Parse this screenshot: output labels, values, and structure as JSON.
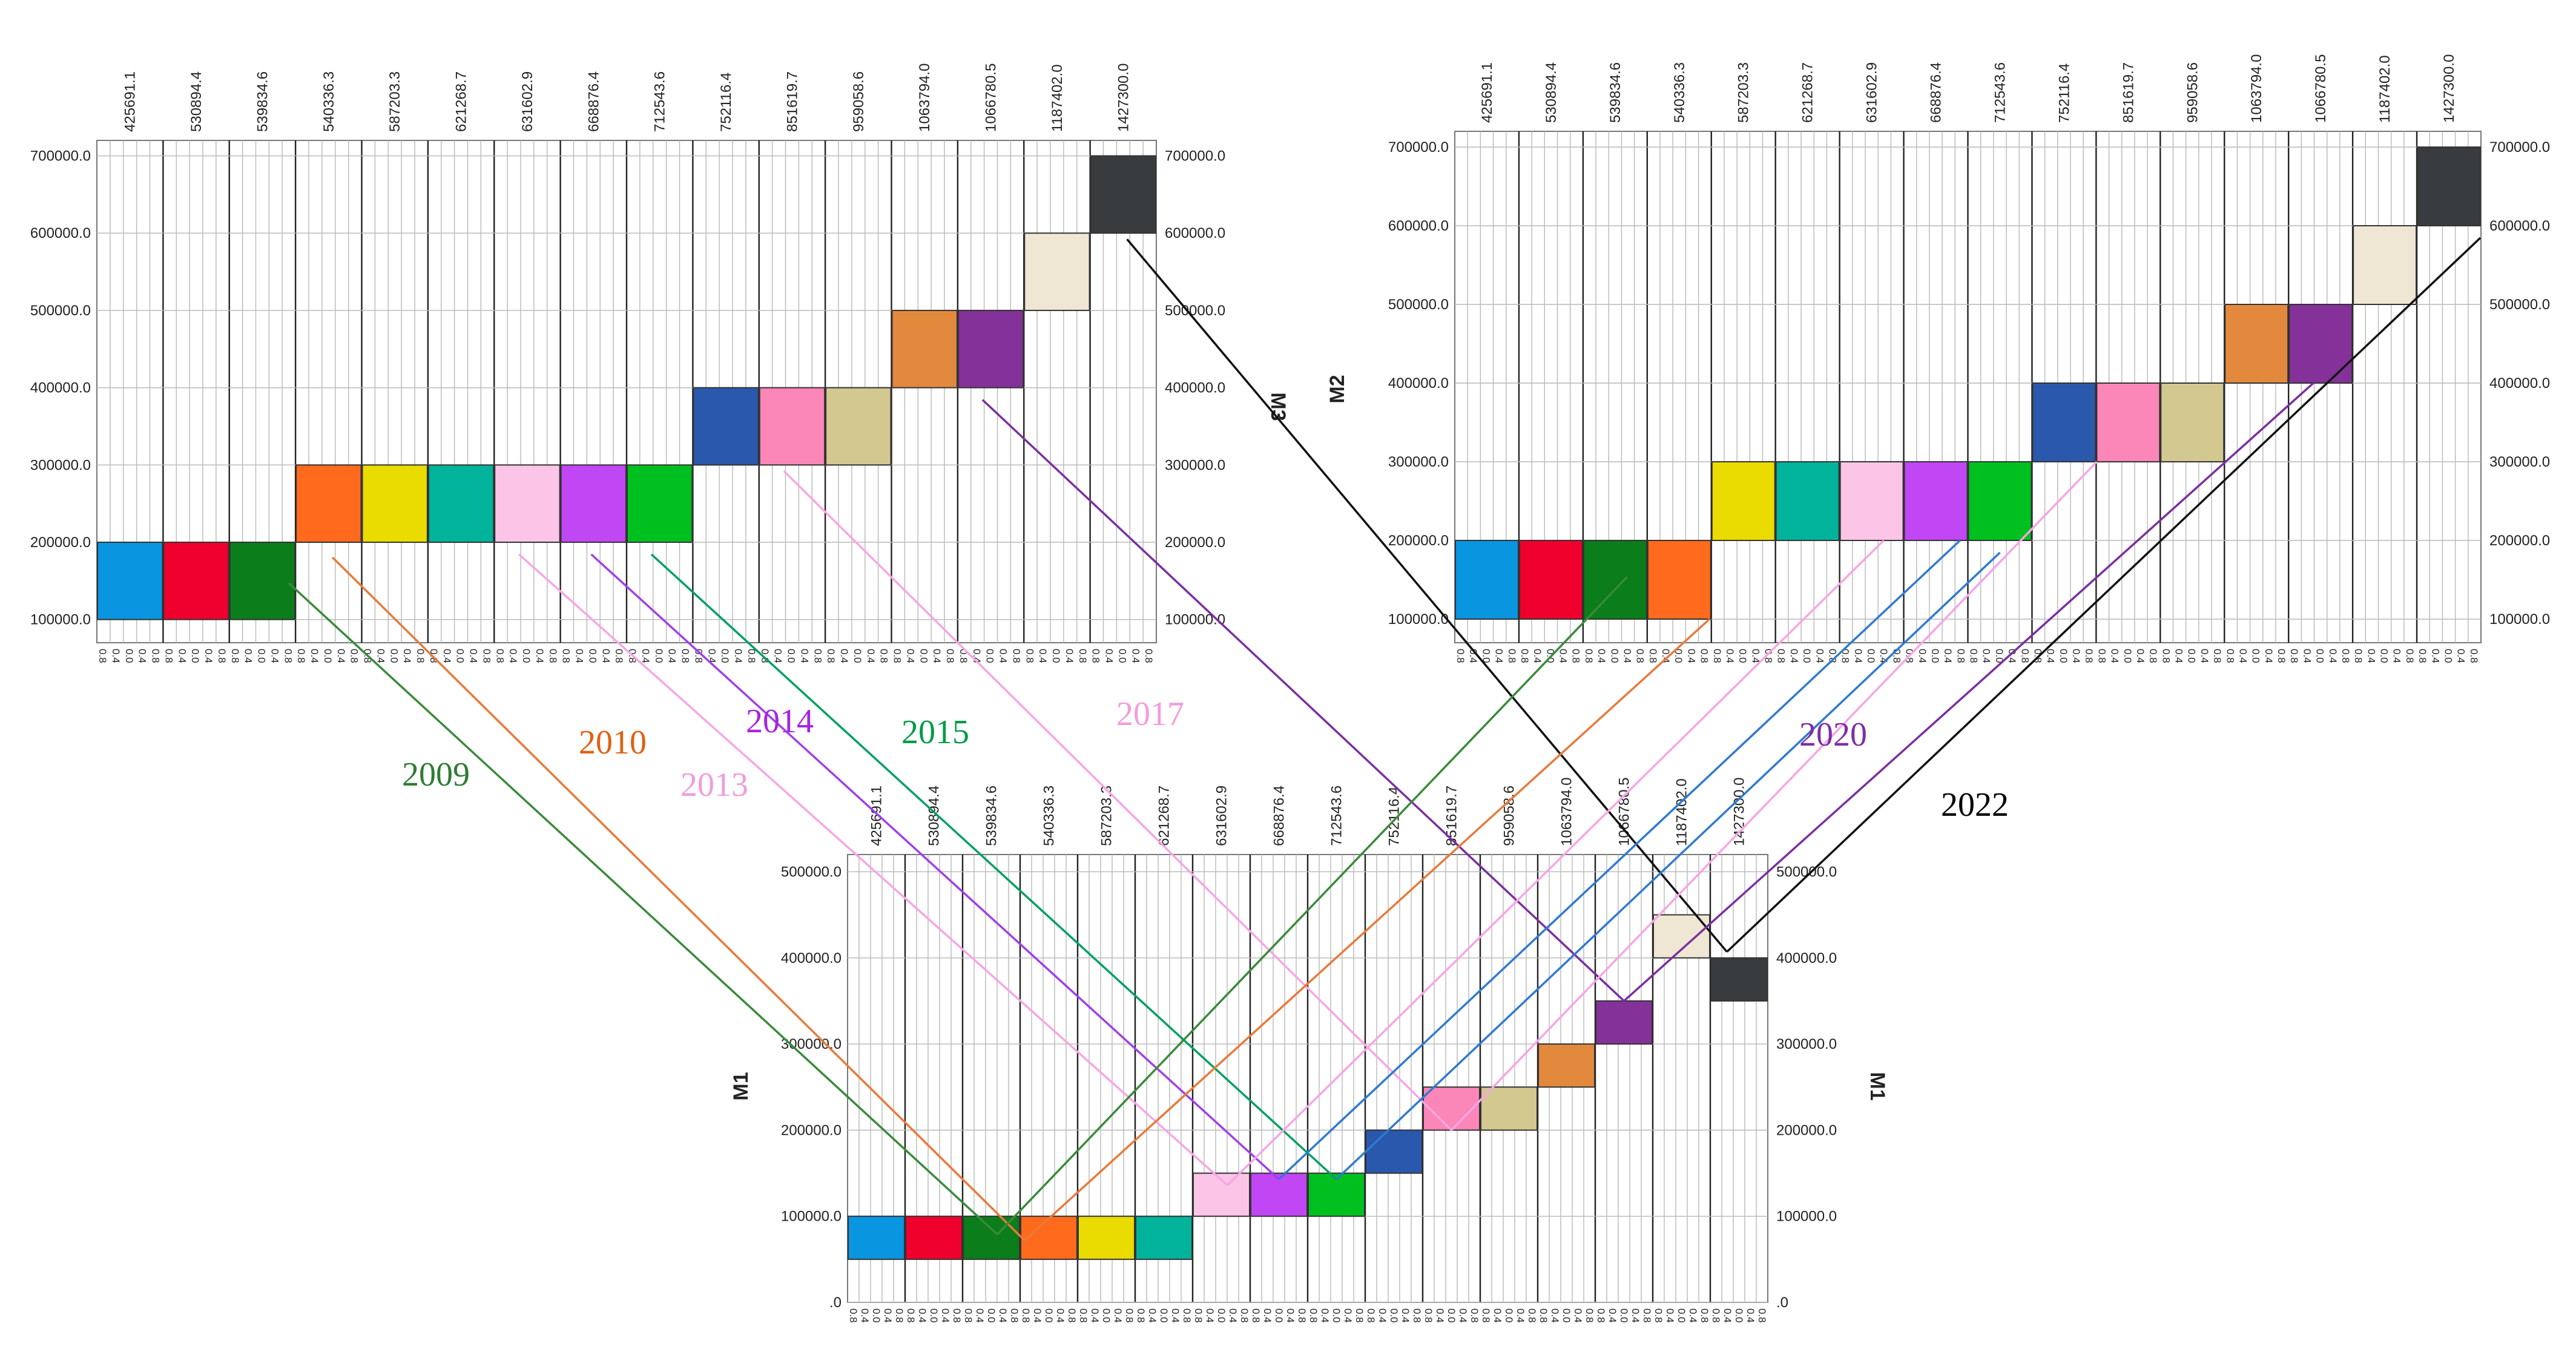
{
  "chart_data": {
    "type": "heatmap",
    "description_of_encoding": "three panels (M3, M2, M1); columns = categories; each colored cell spans one value bin",
    "categories": [
      "425691.1",
      "530894.4",
      "539834.6",
      "540336.3",
      "587203.3",
      "621268.7",
      "631602.9",
      "668876.4",
      "712543.6",
      "752116.4",
      "851619.7",
      "959058.6",
      "1063794.0",
      "1066780.5",
      "1187402.0",
      "1427300.0"
    ],
    "colors": [
      "#0a95e0",
      "#f0002c",
      "#0b7d1a",
      "#ff6a1c",
      "#eadb00",
      "#00b39a",
      "#fcc5e8",
      "#c146f4",
      "#00c020",
      "#2a58ad",
      "#fb86b8",
      "#d3c890",
      "#e2893e",
      "#843199",
      "#efe6d4",
      "#383c3f"
    ],
    "bottom_tick_labels": [
      "0.8",
      "0.4",
      "0.0",
      "0.4",
      "0.8"
    ],
    "panels": [
      {
        "name": "M3",
        "y_ticks": [
          "100000.0",
          "200000.0",
          "300000.0",
          "400000.0",
          "500000.0",
          "600000.0",
          "700000.0"
        ],
        "y_range": [
          70000,
          720000
        ],
        "cells": [
          [
            100000,
            200000
          ],
          [
            100000,
            200000
          ],
          [
            100000,
            200000
          ],
          [
            200000,
            300000
          ],
          [
            200000,
            300000
          ],
          [
            200000,
            300000
          ],
          [
            200000,
            300000
          ],
          [
            200000,
            300000
          ],
          [
            200000,
            300000
          ],
          [
            300000,
            400000
          ],
          [
            300000,
            400000
          ],
          [
            300000,
            400000
          ],
          [
            400000,
            500000
          ],
          [
            400000,
            500000
          ],
          [
            500000,
            600000
          ],
          [
            600000,
            700000
          ]
        ]
      },
      {
        "name": "M2",
        "y_ticks": [
          "100000.0",
          "200000.0",
          "300000.0",
          "400000.0",
          "500000.0",
          "600000.0",
          "700000.0"
        ],
        "y_range": [
          70000,
          720000
        ],
        "cells": [
          [
            100000,
            200000
          ],
          [
            100000,
            200000
          ],
          [
            100000,
            200000
          ],
          [
            100000,
            200000
          ],
          [
            200000,
            300000
          ],
          [
            200000,
            300000
          ],
          [
            200000,
            300000
          ],
          [
            200000,
            300000
          ],
          [
            200000,
            300000
          ],
          [
            300000,
            400000
          ],
          [
            300000,
            400000
          ],
          [
            300000,
            400000
          ],
          [
            400000,
            500000
          ],
          [
            400000,
            500000
          ],
          [
            500000,
            600000
          ],
          [
            600000,
            700000
          ]
        ]
      },
      {
        "name": "M1",
        "y_ticks": [
          ".0",
          "100000.0",
          "200000.0",
          "300000.0",
          "400000.0",
          "500000.0"
        ],
        "y_range": [
          0,
          520000
        ],
        "cells": [
          [
            50000,
            100000
          ],
          [
            50000,
            100000
          ],
          [
            50000,
            100000
          ],
          [
            50000,
            100000
          ],
          [
            50000,
            100000
          ],
          [
            50000,
            100000
          ],
          [
            100000,
            150000
          ],
          [
            100000,
            150000
          ],
          [
            100000,
            150000
          ],
          [
            150000,
            200000
          ],
          [
            200000,
            250000
          ],
          [
            200000,
            250000
          ],
          [
            250000,
            300000
          ],
          [
            300000,
            350000
          ],
          [
            400000,
            450000
          ],
          [
            350000,
            400000
          ]
        ]
      }
    ],
    "year_labels": [
      {
        "text": "2009",
        "color": "#2e7d32"
      },
      {
        "text": "2010",
        "color": "#e06010"
      },
      {
        "text": "2013",
        "color": "#f39bdc"
      },
      {
        "text": "2014",
        "color": "#a524e6"
      },
      {
        "text": "2015",
        "color": "#009a48"
      },
      {
        "text": "2017",
        "color": "#f39bdc"
      },
      {
        "text": "2020",
        "color": "#7e2da7"
      },
      {
        "text": "2022",
        "color": "#000000"
      }
    ],
    "connector_colors": {
      "green": "#3a8a3a",
      "orange": "#e87a3a",
      "pink": "#f7a6e4",
      "purple": "#a040e8",
      "teal": "#00a060",
      "blue": "#2f7ad0",
      "dark_purple": "#7a2fa0",
      "black": "#111111"
    }
  }
}
